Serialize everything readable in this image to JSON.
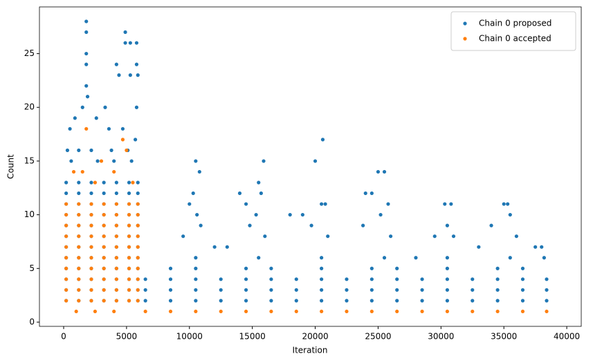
{
  "chart_data": {
    "type": "scatter",
    "xlabel": "Iteration",
    "ylabel": "Count",
    "xlim": [
      -1925,
      41150
    ],
    "ylim": [
      -0.39,
      29.35
    ],
    "xticks": [
      0,
      5000,
      10000,
      15000,
      20000,
      25000,
      30000,
      35000,
      40000
    ],
    "yticks": [
      0,
      5,
      10,
      15,
      20,
      25
    ],
    "legend": "upper right",
    "series": [
      {
        "name": "Chain 0 proposed",
        "color": "#1f77b4",
        "x": [
          200,
          1200,
          2200,
          3200,
          4200,
          5200,
          5900,
          200,
          1200,
          2200,
          3200,
          4200,
          5200,
          5900,
          200,
          1200,
          2200,
          3200,
          4200,
          5200,
          5900,
          200,
          1200,
          2200,
          3200,
          4200,
          5200,
          5900,
          200,
          1200,
          2200,
          3200,
          4200,
          5200,
          5900,
          200,
          1200,
          2200,
          3200,
          4200,
          5200,
          5900,
          200,
          1200,
          2200,
          3200,
          4200,
          5200,
          5900,
          200,
          1200,
          2200,
          3200,
          4200,
          5200,
          5900,
          200,
          1200,
          2200,
          3200,
          4200,
          5200,
          5900,
          200,
          1200,
          2200,
          3200,
          4200,
          5200,
          5900,
          200,
          1200,
          2200,
          3200,
          4200,
          5200,
          5900,
          200,
          1200,
          2200,
          3200,
          4200,
          5200,
          5900,
          1800,
          1800,
          1800,
          1800,
          1800,
          1900,
          1500,
          4900,
          4900,
          5300,
          5800,
          4200,
          5800,
          5300,
          4400,
          5900,
          3300,
          900,
          2600,
          500,
          3600,
          4700,
          5800,
          5700,
          300,
          1200,
          2200,
          3800,
          5100,
          600,
          2700,
          4000,
          5400,
          6500,
          8500,
          10500,
          12500,
          14500,
          16500,
          18500,
          20500,
          22500,
          24500,
          26500,
          28500,
          30500,
          32500,
          34500,
          36500,
          38400,
          6500,
          8500,
          10500,
          12500,
          14500,
          16500,
          18500,
          20500,
          22500,
          24500,
          26500,
          28500,
          30500,
          32500,
          34500,
          36500,
          38400,
          6500,
          8500,
          10500,
          12500,
          14500,
          16500,
          18500,
          20500,
          22500,
          24500,
          26500,
          28500,
          30500,
          32500,
          34500,
          36500,
          38400,
          8500,
          10500,
          14500,
          16500,
          20500,
          24500,
          26500,
          30500,
          34500,
          36500,
          10500,
          15500,
          20500,
          25500,
          30500,
          35500,
          10500,
          10800,
          10300,
          10000,
          10600,
          10900,
          9500,
          12000,
          13000,
          14000,
          14500,
          15500,
          15900,
          15700,
          15300,
          14800,
          16000,
          18000,
          19000,
          20000,
          20600,
          20500,
          20800,
          19700,
          21000,
          24000,
          24500,
          25000,
          25500,
          25800,
          23800,
          25200,
          26000,
          28000,
          29500,
          30300,
          30800,
          30500,
          31000,
          33000,
          34000,
          35000,
          35300,
          35500,
          36000,
          37500,
          38000,
          38200
        ],
        "values": [
          2,
          2,
          2,
          2,
          2,
          2,
          2,
          3,
          3,
          3,
          3,
          3,
          3,
          3,
          4,
          4,
          4,
          4,
          4,
          4,
          4,
          5,
          5,
          5,
          5,
          5,
          5,
          5,
          6,
          6,
          6,
          6,
          6,
          6,
          6,
          7,
          7,
          7,
          7,
          7,
          7,
          7,
          8,
          8,
          8,
          8,
          8,
          8,
          8,
          9,
          9,
          9,
          9,
          9,
          9,
          9,
          10,
          10,
          10,
          10,
          10,
          10,
          10,
          11,
          11,
          11,
          11,
          11,
          11,
          11,
          12,
          12,
          12,
          12,
          12,
          12,
          12,
          13,
          13,
          13,
          13,
          13,
          13,
          13,
          28,
          27,
          25,
          24,
          22,
          21,
          20,
          27,
          26,
          26,
          26,
          24,
          24,
          23,
          23,
          23,
          20,
          19,
          19,
          18,
          18,
          18,
          20,
          17,
          16,
          16,
          16,
          16,
          16,
          15,
          15,
          15,
          15,
          2,
          2,
          2,
          2,
          2,
          2,
          2,
          2,
          2,
          2,
          2,
          2,
          2,
          2,
          2,
          2,
          2,
          3,
          3,
          3,
          3,
          3,
          3,
          3,
          3,
          3,
          3,
          3,
          3,
          3,
          3,
          3,
          3,
          3,
          4,
          4,
          4,
          4,
          4,
          4,
          4,
          4,
          4,
          4,
          4,
          4,
          4,
          4,
          4,
          4,
          4,
          5,
          5,
          5,
          5,
          5,
          5,
          5,
          5,
          5,
          5,
          6,
          6,
          6,
          6,
          6,
          6,
          15,
          14,
          12,
          11,
          10,
          9,
          8,
          7,
          7,
          12,
          11,
          13,
          15,
          12,
          10,
          9,
          8,
          10,
          10,
          15,
          17,
          11,
          11,
          9,
          8,
          12,
          12,
          14,
          14,
          11,
          9,
          10,
          8,
          6,
          8,
          11,
          11,
          9,
          8,
          7,
          9,
          11,
          11,
          10,
          8,
          7,
          7,
          6
        ]
      },
      {
        "name": "Chain 0 accepted",
        "color": "#ff7f0e",
        "x": [
          200,
          1200,
          2200,
          3200,
          4200,
          5200,
          5900,
          200,
          1200,
          2200,
          3200,
          4200,
          5200,
          5900,
          200,
          1200,
          2200,
          3200,
          4200,
          5200,
          5900,
          200,
          1200,
          2200,
          3200,
          4200,
          5200,
          5900,
          200,
          1200,
          2200,
          3200,
          4200,
          5200,
          5900,
          200,
          1200,
          2200,
          3200,
          4200,
          5200,
          5900,
          200,
          1200,
          2200,
          3200,
          4200,
          5200,
          5900,
          200,
          1200,
          2200,
          3200,
          4200,
          5200,
          5900,
          200,
          1200,
          2200,
          3200,
          4200,
          5200,
          5900,
          200,
          1200,
          2200,
          3200,
          4200,
          5200,
          5900,
          1800,
          4700,
          3000,
          1500,
          4000,
          5500,
          2500,
          800,
          5000,
          1000,
          2500,
          4000,
          6500,
          8500,
          10500,
          12500,
          14500,
          16500,
          18500,
          20500,
          22500,
          24500,
          26500,
          28500,
          30500,
          32500,
          34500,
          36500,
          38400
        ],
        "values": [
          2,
          2,
          2,
          2,
          2,
          2,
          2,
          3,
          3,
          3,
          3,
          3,
          3,
          3,
          4,
          4,
          4,
          4,
          4,
          4,
          4,
          5,
          5,
          5,
          5,
          5,
          5,
          5,
          6,
          6,
          6,
          6,
          6,
          6,
          6,
          7,
          7,
          7,
          7,
          7,
          7,
          7,
          8,
          8,
          8,
          8,
          8,
          8,
          8,
          9,
          9,
          9,
          9,
          9,
          9,
          9,
          10,
          10,
          10,
          10,
          10,
          10,
          10,
          11,
          11,
          11,
          11,
          11,
          11,
          11,
          18,
          17,
          15,
          14,
          14,
          13,
          13,
          14,
          16,
          1,
          1,
          1,
          1,
          1,
          1,
          1,
          1,
          1,
          1,
          1,
          1,
          1,
          1,
          1,
          1,
          1,
          1,
          1,
          1
        ]
      }
    ]
  }
}
